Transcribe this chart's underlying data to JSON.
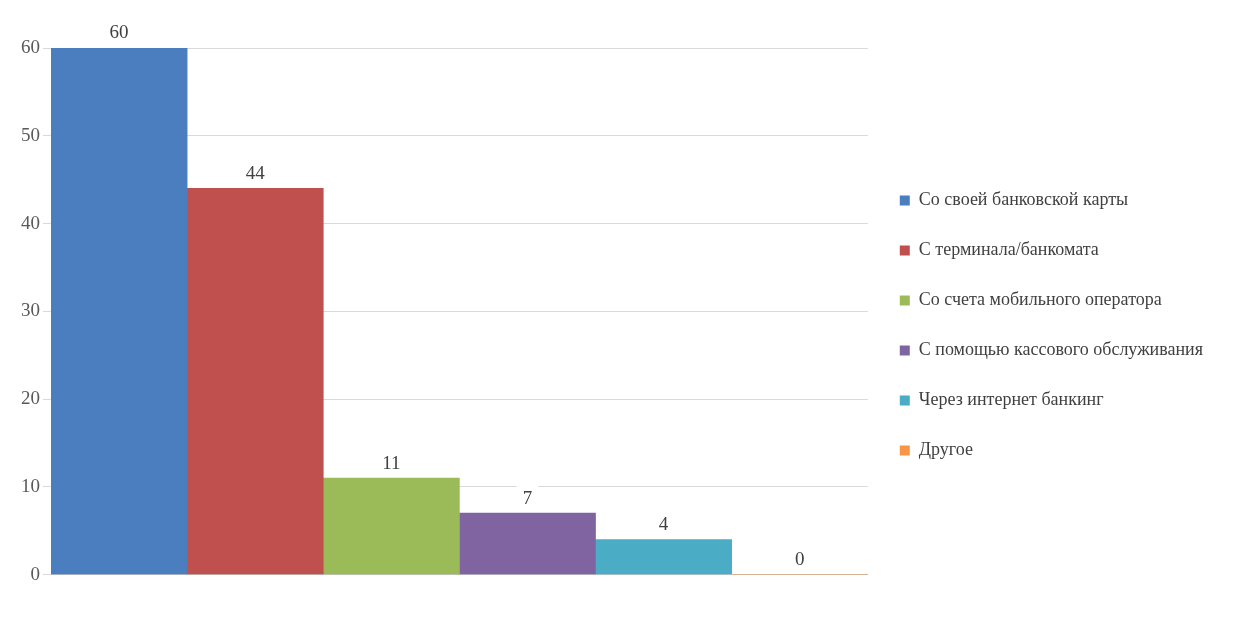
{
  "chart_data": {
    "type": "bar",
    "categories": [
      null,
      null,
      null,
      null,
      null,
      null
    ],
    "series": [
      {
        "name": "Со своей банковской карты",
        "color": "#4a7ebf",
        "values": [
          60,
          null,
          null,
          null,
          null,
          null
        ]
      },
      {
        "name": "С терминала/банкомата",
        "color": "#c0504d",
        "values": [
          null,
          44,
          null,
          null,
          null,
          null
        ]
      },
      {
        "name": "Со счета мобильного оператора",
        "color": "#9bbb59",
        "values": [
          null,
          null,
          11,
          null,
          null,
          null
        ]
      },
      {
        "name": "С помощью кассового обслуживания",
        "color": "#8064a2",
        "values": [
          null,
          null,
          null,
          7,
          null,
          null
        ]
      },
      {
        "name": "Через интернет банкинг",
        "color": "#4bacc6",
        "values": [
          null,
          null,
          null,
          null,
          4,
          null
        ]
      },
      {
        "name": "Другое",
        "color": "#f79646",
        "values": [
          null,
          null,
          null,
          null,
          null,
          0
        ]
      }
    ],
    "ylim": [
      0,
      60
    ],
    "yticks": [
      0,
      10,
      20,
      30,
      40,
      50,
      60
    ],
    "grid": "y",
    "legend": "right",
    "data_labels": true
  }
}
